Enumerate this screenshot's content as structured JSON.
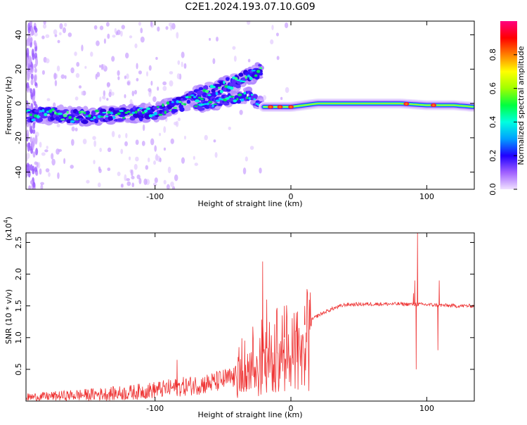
{
  "title": "C2E1.2024.193.07.10.G09",
  "chart_data": [
    {
      "type": "heatmap",
      "panel": "spectrogram",
      "xlabel": "Height of straight line (km)",
      "ylabel": "Frequency (Hz)",
      "xlim": [
        -195,
        135
      ],
      "ylim": [
        -50,
        48
      ],
      "xticks": [
        -100,
        0,
        100
      ],
      "xticklabels": [
        "-100",
        "0",
        "100"
      ],
      "yticks": [
        -40,
        -20,
        0,
        20,
        40
      ],
      "yticklabels": [
        "-40",
        "-20",
        "0",
        "20",
        "40"
      ],
      "trace_x": [
        -195,
        -175,
        -160,
        -140,
        -120,
        -100,
        -90,
        -80,
        -70,
        -60,
        -50,
        -40,
        -30,
        -22
      ],
      "trace_y": [
        -7,
        -6,
        -8,
        -7,
        -6,
        -5,
        -2,
        0,
        4,
        7,
        10,
        13,
        16,
        20
      ],
      "trace2_x": [
        -70,
        -50,
        -40,
        -30,
        -25,
        -20
      ],
      "trace2_y": [
        -2,
        2,
        3,
        5,
        1,
        -2
      ],
      "carrier_x": [
        -20,
        0,
        20,
        40,
        60,
        80,
        100,
        120,
        135
      ],
      "carrier_y": [
        -2,
        -2,
        0,
        0,
        0,
        0,
        -1,
        -1,
        -2
      ],
      "hotspots_x": [
        -15,
        -8,
        0,
        85,
        105
      ],
      "colorbar": {
        "label": "Normalized spectral amplitude",
        "range": [
          0,
          1
        ],
        "ticks": [
          0.0,
          0.2,
          0.4,
          0.6,
          0.8
        ],
        "ticklabels": [
          "0.0",
          "0.2",
          "0.4",
          "0.6",
          "0.8"
        ],
        "colors": [
          "#f0e0ff",
          "#a060ff",
          "#2000ff",
          "#00a0ff",
          "#00ffe0",
          "#00ff40",
          "#a0ff00",
          "#ffff00",
          "#ff8000",
          "#ff0000",
          "#ff0080"
        ]
      }
    },
    {
      "type": "line",
      "panel": "snr",
      "xlabel": "Height of straight line (km)",
      "ylabel": "SNR (10 * v/v)",
      "yscale_label": "(x10",
      "yscale_exp": "4",
      "yscale_close": ")",
      "xlim": [
        -195,
        135
      ],
      "ylim": [
        0,
        2.65
      ],
      "xticks": [
        -100,
        0,
        100
      ],
      "xticklabels": [
        "-100",
        "0",
        "100"
      ],
      "yticks": [
        0.5,
        1.0,
        1.5,
        2.0,
        2.5
      ],
      "yticklabels": [
        "0.5",
        "1.0",
        "1.5",
        "2.0",
        "2.5"
      ],
      "color": "#ee3333",
      "envelope_x": [
        -195,
        -150,
        -120,
        -90,
        -60,
        -40,
        -30,
        -20,
        -10,
        0,
        10,
        20,
        30,
        40,
        60,
        80,
        100,
        120,
        135
      ],
      "envelope_y": [
        0.06,
        0.1,
        0.13,
        0.2,
        0.28,
        0.38,
        0.6,
        0.8,
        0.95,
        1.05,
        1.2,
        1.35,
        1.45,
        1.52,
        1.53,
        1.53,
        1.52,
        1.5,
        1.5
      ],
      "spikes_x": [
        -84,
        -21,
        -18,
        -5,
        10,
        90,
        91,
        92,
        93,
        108,
        109
      ],
      "spikes_y": [
        0.65,
        2.2,
        1.6,
        1.5,
        1.5,
        1.7,
        1.9,
        0.5,
        2.65,
        0.8,
        1.9
      ]
    }
  ]
}
